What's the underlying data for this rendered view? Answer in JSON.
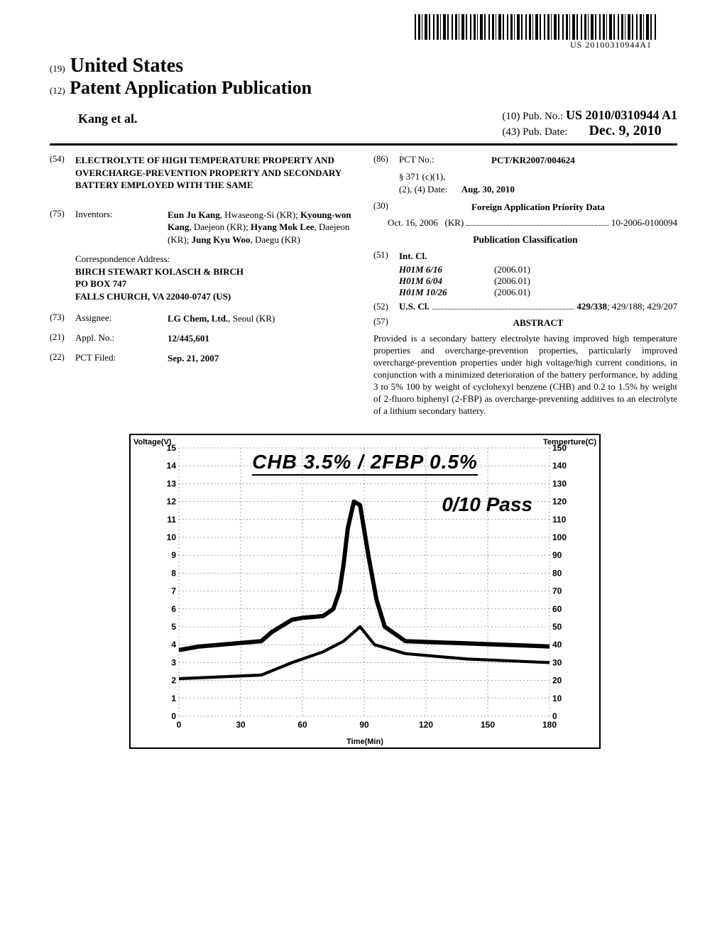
{
  "barcode_text": "US 20100310944A1",
  "header": {
    "us_prefix": "(19)",
    "us": "United States",
    "pub_prefix": "(12)",
    "pub": "Patent Application Publication",
    "authors": "Kang et al.",
    "pub_no_prefix": "(10)",
    "pub_no_label": "Pub. No.:",
    "pub_no": "US 2010/0310944 A1",
    "pub_date_prefix": "(43)",
    "pub_date_label": "Pub. Date:",
    "pub_date": "Dec. 9, 2010"
  },
  "left": {
    "f54_num": "(54)",
    "f54_title": "ELECTROLYTE OF HIGH TEMPERATURE PROPERTY AND OVERCHARGE-PREVENTION PROPERTY AND SECONDARY BATTERY EMPLOYED WITH THE SAME",
    "f75_num": "(75)",
    "f75_label": "Inventors:",
    "f75_value": "Eun Ju Kang, Hwaseong-Si (KR); Kyoung-won Kang, Daejeon (KR); Hyang Mok Lee, Daejeon (KR); Jung Kyu Woo, Daegu (KR)",
    "corr_label": "Correspondence Address:",
    "corr_1": "BIRCH STEWART KOLASCH & BIRCH",
    "corr_2": "PO BOX 747",
    "corr_3": "FALLS CHURCH, VA 22040-0747 (US)",
    "f73_num": "(73)",
    "f73_label": "Assignee:",
    "f73_value": "LG Chem, Ltd., Seoul (KR)",
    "f21_num": "(21)",
    "f21_label": "Appl. No.:",
    "f21_value": "12/445,601",
    "f22_num": "(22)",
    "f22_label": "PCT Filed:",
    "f22_value": "Sep. 21, 2007"
  },
  "right": {
    "f86_num": "(86)",
    "f86_label": "PCT No.:",
    "f86_value": "PCT/KR2007/004624",
    "s371_1": "§ 371 (c)(1),",
    "s371_2": "(2), (4) Date:",
    "s371_date": "Aug. 30, 2010",
    "f30_num": "(30)",
    "f30_label": "Foreign Application Priority Data",
    "prio_date": "Oct. 16, 2006",
    "prio_country": "(KR)",
    "prio_number": "10-2006-0100094",
    "pub_class": "Publication Classification",
    "f51_num": "(51)",
    "f51_label": "Int. Cl.",
    "intcl": [
      {
        "code": "H01M 6/16",
        "year": "(2006.01)"
      },
      {
        "code": "H01M 6/04",
        "year": "(2006.01)"
      },
      {
        "code": "H01M 10/26",
        "year": "(2006.01)"
      }
    ],
    "f52_num": "(52)",
    "f52_label": "U.S. Cl.",
    "f52_value": "429/338; 429/188; 429/207",
    "f57_num": "(57)",
    "f57_label": "ABSTRACT",
    "abstract": "Provided is a secondary battery electrolyte having improved high temperature properties and overcharge-prevention properties, particularly improved overcharge-prevention properties under high voltage/high current conditions, in conjunction with a minimized deterioration of the battery performance, by adding 3 to 5% 100 by weight of cyclohexyl benzene (CHB) and 0.2 to 1.5% by weight of 2-fluoro biphenyl (2-FBP) as overcharge-preventing additives to an electrolyte of a lithium secondary battery."
  },
  "chart": {
    "type": "line",
    "title": "CHB 3.5% / 2FBP 0.5%",
    "subtitle": "0/10 Pass",
    "y_left_label": "Voltage(V)",
    "y_right_label": "Temperture(C)",
    "x_label": "Time(Min)",
    "background_color": "#ffffff",
    "grid_color": "#000000",
    "line_color": "#000000",
    "line_width": 6,
    "xlim": [
      0,
      180
    ],
    "ylim_left": [
      0,
      15
    ],
    "ylim_right": [
      0,
      150
    ],
    "x_ticks": [
      0,
      30,
      60,
      90,
      120,
      150,
      180
    ],
    "y_left_ticks": [
      0,
      1,
      2,
      3,
      4,
      5,
      6,
      7,
      8,
      9,
      10,
      11,
      12,
      13,
      14,
      15
    ],
    "y_right_ticks": [
      0,
      10,
      20,
      30,
      40,
      50,
      60,
      70,
      80,
      90,
      100,
      110,
      120,
      130,
      140,
      150
    ],
    "title_fontsize": 28,
    "subtitle_fontsize": 28,
    "tick_fontsize": 12,
    "voltage_series": {
      "x": [
        0,
        5,
        10,
        40,
        45,
        55,
        60,
        70,
        75,
        78,
        80,
        82,
        85,
        88,
        92,
        96,
        100,
        110,
        180
      ],
      "y": [
        3.7,
        3.8,
        3.9,
        4.2,
        4.7,
        5.4,
        5.5,
        5.6,
        6.0,
        7.0,
        8.5,
        10.5,
        12.0,
        11.8,
        9.0,
        6.5,
        5.0,
        4.2,
        3.9
      ]
    },
    "temperature_series": {
      "x": [
        0,
        40,
        55,
        70,
        80,
        88,
        95,
        110,
        140,
        180
      ],
      "y": [
        2.1,
        2.3,
        3.0,
        3.6,
        4.2,
        5.0,
        4.0,
        3.5,
        3.2,
        3.0
      ]
    }
  }
}
